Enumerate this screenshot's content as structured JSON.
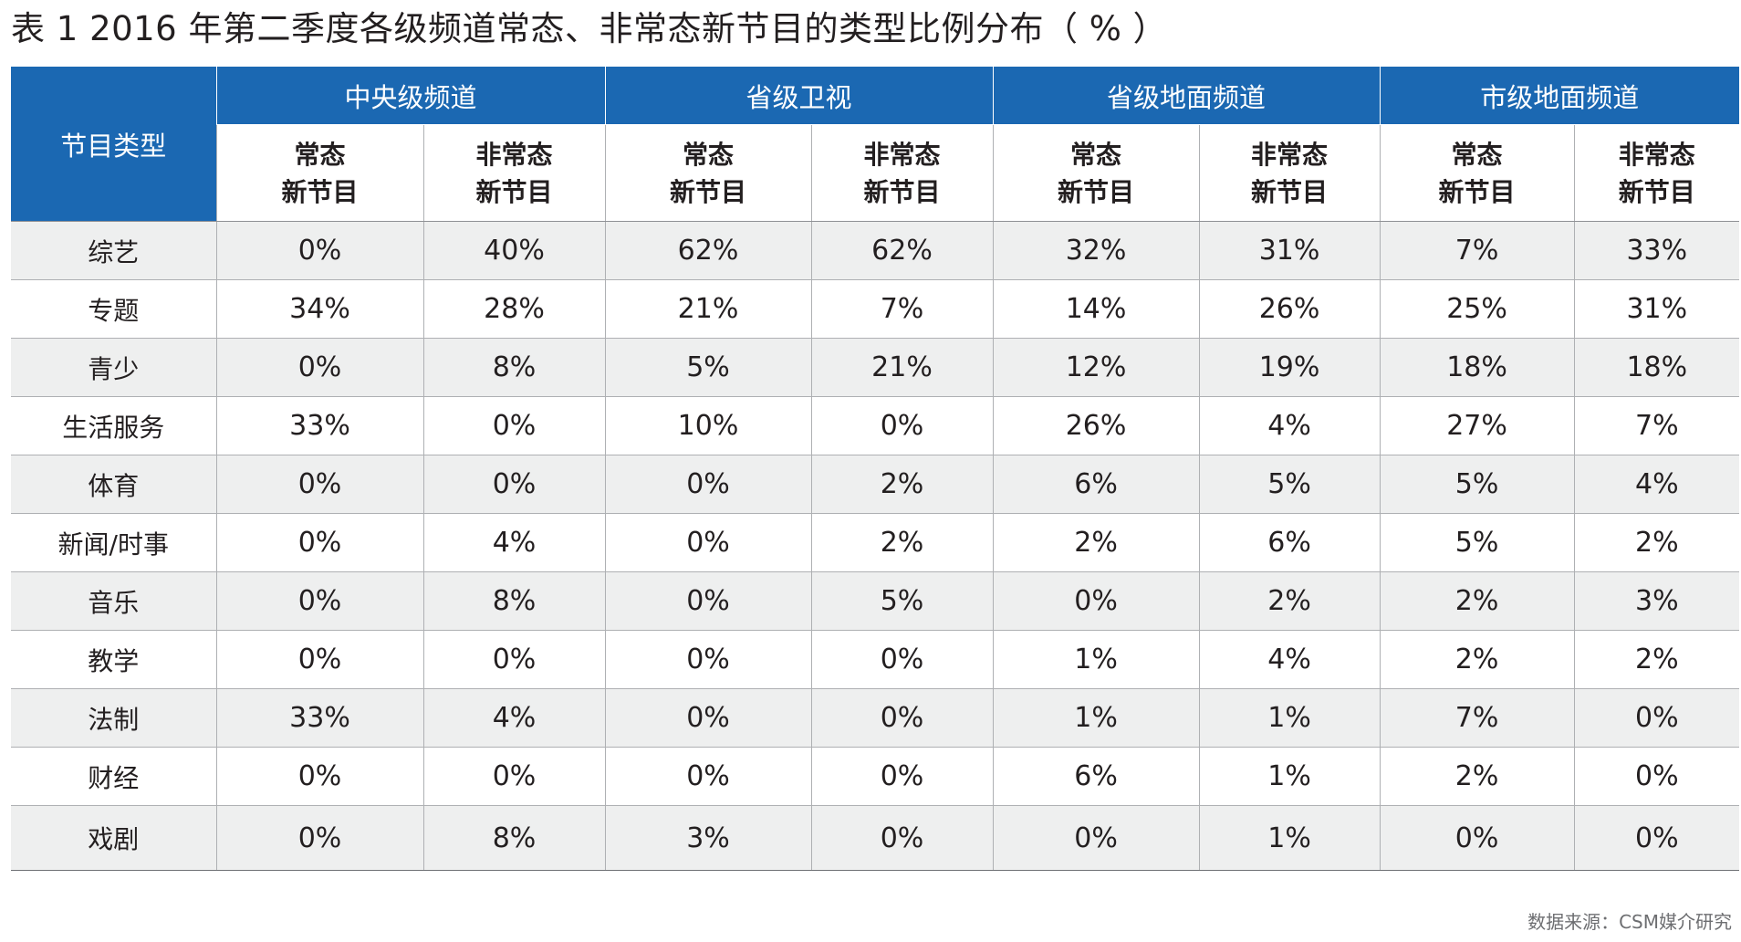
{
  "title": "表 1  2016 年第二季度各级频道常态、非常态新节目的类型比例分布（ % ）",
  "table": {
    "corner": "节目类型",
    "groups": [
      "中央级频道",
      "省级卫视",
      "省级地面频道",
      "市级地面频道"
    ],
    "sub_headers": [
      [
        "常态",
        "新节目"
      ],
      [
        "非常态",
        "新节目"
      ],
      [
        "常态",
        "新节目"
      ],
      [
        "非常态",
        "新节目"
      ],
      [
        "常态",
        "新节目"
      ],
      [
        "非常态",
        "新节目"
      ],
      [
        "常态",
        "新节目"
      ],
      [
        "非常态",
        "新节目"
      ]
    ],
    "rows": [
      {
        "label": "综艺",
        "values": [
          "0%",
          "40%",
          "62%",
          "62%",
          "32%",
          "31%",
          "7%",
          "33%"
        ]
      },
      {
        "label": "专题",
        "values": [
          "34%",
          "28%",
          "21%",
          "7%",
          "14%",
          "26%",
          "25%",
          "31%"
        ]
      },
      {
        "label": "青少",
        "values": [
          "0%",
          "8%",
          "5%",
          "21%",
          "12%",
          "19%",
          "18%",
          "18%"
        ]
      },
      {
        "label": "生活服务",
        "values": [
          "33%",
          "0%",
          "10%",
          "0%",
          "26%",
          "4%",
          "27%",
          "7%"
        ]
      },
      {
        "label": "体育",
        "values": [
          "0%",
          "0%",
          "0%",
          "2%",
          "6%",
          "5%",
          "5%",
          "4%"
        ]
      },
      {
        "label": "新闻/时事",
        "values": [
          "0%",
          "4%",
          "0%",
          "2%",
          "2%",
          "6%",
          "5%",
          "2%"
        ]
      },
      {
        "label": "音乐",
        "values": [
          "0%",
          "8%",
          "0%",
          "5%",
          "0%",
          "2%",
          "2%",
          "3%"
        ]
      },
      {
        "label": "教学",
        "values": [
          "0%",
          "0%",
          "0%",
          "0%",
          "1%",
          "4%",
          "2%",
          "2%"
        ]
      },
      {
        "label": "法制",
        "values": [
          "33%",
          "4%",
          "0%",
          "0%",
          "1%",
          "1%",
          "7%",
          "0%"
        ]
      },
      {
        "label": "财经",
        "values": [
          "0%",
          "0%",
          "0%",
          "0%",
          "6%",
          "1%",
          "2%",
          "0%"
        ]
      },
      {
        "label": "戏剧",
        "values": [
          "0%",
          "8%",
          "3%",
          "0%",
          "0%",
          "1%",
          "0%",
          "0%"
        ]
      }
    ]
  },
  "source": "数据来源：CSM媒介研究",
  "colors": {
    "header_blue": "#1b68b2",
    "row_stripe": "#eeefef",
    "grid_line": "#aeb0b3"
  }
}
